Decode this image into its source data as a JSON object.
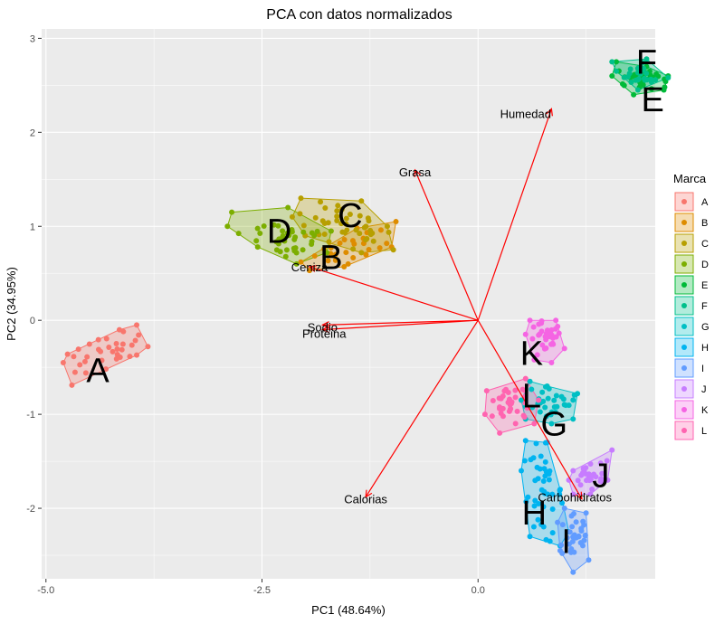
{
  "chart_data": {
    "type": "scatter",
    "title": "PCA con datos normalizados",
    "xlabel": "PC1 (48.64%)",
    "ylabel": "PC2 (34.95%)",
    "xlim": [
      -5.05,
      2.05
    ],
    "ylim": [
      -2.75,
      3.1
    ],
    "x_ticks": [
      -5.0,
      -2.5,
      0.0
    ],
    "x_tick_labels": [
      "-5.0",
      "-2.5",
      "0.0"
    ],
    "y_ticks": [
      -2,
      -1,
      0,
      1,
      2,
      3
    ],
    "y_tick_labels": [
      "-2",
      "-1",
      "0",
      "1",
      "2",
      "3"
    ],
    "grid": true,
    "legend": {
      "title": "Marca",
      "position": "right"
    },
    "groups": [
      {
        "name": "A",
        "color": "#F8766D",
        "label_pos": [
          -4.4,
          -0.53
        ],
        "hull": [
          [
            -4.75,
            -0.36
          ],
          [
            -4.15,
            -0.1
          ],
          [
            -3.95,
            -0.05
          ],
          [
            -3.82,
            -0.28
          ],
          [
            -3.95,
            -0.37
          ],
          [
            -4.7,
            -0.69
          ],
          [
            -4.8,
            -0.45
          ]
        ],
        "center": [
          -4.3,
          -0.35
        ],
        "spread": [
          0.3,
          0.15
        ],
        "n": 28
      },
      {
        "name": "B",
        "color": "#DE8C00",
        "label_pos": [
          -1.7,
          0.67
        ],
        "hull": [
          [
            -2.05,
            0.62
          ],
          [
            -1.4,
            0.98
          ],
          [
            -0.95,
            1.05
          ],
          [
            -1.0,
            0.78
          ],
          [
            -1.55,
            0.57
          ],
          [
            -1.95,
            0.53
          ]
        ],
        "center": [
          -1.5,
          0.78
        ],
        "spread": [
          0.25,
          0.12
        ],
        "n": 22
      },
      {
        "name": "C",
        "color": "#B79F00",
        "label_pos": [
          -1.48,
          1.12
        ],
        "hull": [
          [
            -2.05,
            1.3
          ],
          [
            -1.35,
            1.27
          ],
          [
            -1.05,
            1.0
          ],
          [
            -0.98,
            0.75
          ],
          [
            -1.35,
            0.72
          ],
          [
            -2.0,
            0.9
          ],
          [
            -2.15,
            1.1
          ]
        ],
        "center": [
          -1.6,
          0.97
        ],
        "spread": [
          0.3,
          0.15
        ],
        "n": 38
      },
      {
        "name": "D",
        "color": "#7CAE00",
        "label_pos": [
          -2.3,
          0.95
        ],
        "hull": [
          [
            -2.85,
            1.15
          ],
          [
            -2.2,
            1.2
          ],
          [
            -1.7,
            0.95
          ],
          [
            -1.75,
            0.72
          ],
          [
            -2.1,
            0.6
          ],
          [
            -2.55,
            0.78
          ],
          [
            -2.9,
            1.0
          ]
        ],
        "center": [
          -2.25,
          0.88
        ],
        "spread": [
          0.3,
          0.12
        ],
        "n": 35
      },
      {
        "name": "E",
        "color": "#00BA38",
        "label_pos": [
          2.02,
          2.35
        ],
        "hull": [
          [
            1.6,
            2.75
          ],
          [
            1.95,
            2.7
          ],
          [
            2.2,
            2.6
          ],
          [
            2.15,
            2.45
          ],
          [
            1.8,
            2.4
          ],
          [
            1.55,
            2.6
          ]
        ],
        "center": [
          1.9,
          2.57
        ],
        "spread": [
          0.15,
          0.07
        ],
        "n": 35
      },
      {
        "name": "F",
        "color": "#00C08B",
        "label_pos": [
          1.95,
          2.75
        ],
        "hull": [
          [
            1.55,
            2.75
          ],
          [
            1.95,
            2.78
          ],
          [
            2.2,
            2.58
          ],
          [
            1.85,
            2.45
          ],
          [
            1.6,
            2.65
          ]
        ],
        "center": [
          1.88,
          2.62
        ],
        "spread": [
          0.15,
          0.07
        ],
        "n": 25
      },
      {
        "name": "G",
        "color": "#00BFC4",
        "label_pos": [
          0.88,
          -1.1
        ],
        "hull": [
          [
            0.6,
            -0.65
          ],
          [
            0.8,
            -0.7
          ],
          [
            1.15,
            -0.78
          ],
          [
            1.1,
            -1.05
          ],
          [
            0.85,
            -1.1
          ],
          [
            0.55,
            -1.05
          ],
          [
            0.5,
            -0.85
          ]
        ],
        "center": [
          0.85,
          -0.88
        ],
        "spread": [
          0.15,
          0.1
        ],
        "n": 28
      },
      {
        "name": "H",
        "color": "#00B4F0",
        "label_pos": [
          0.65,
          -2.05
        ],
        "hull": [
          [
            0.55,
            -1.28
          ],
          [
            0.8,
            -1.3
          ],
          [
            0.95,
            -1.8
          ],
          [
            1.05,
            -2.25
          ],
          [
            0.95,
            -2.4
          ],
          [
            0.6,
            -2.3
          ],
          [
            0.5,
            -1.6
          ]
        ],
        "center": [
          0.75,
          -1.85
        ],
        "spread": [
          0.12,
          0.28
        ],
        "n": 40
      },
      {
        "name": "I",
        "color": "#619CFF",
        "label_pos": [
          1.02,
          -2.35
        ],
        "hull": [
          [
            1.0,
            -2.0
          ],
          [
            1.25,
            -2.05
          ],
          [
            1.28,
            -2.55
          ],
          [
            1.1,
            -2.68
          ],
          [
            0.95,
            -2.45
          ],
          [
            0.92,
            -2.15
          ]
        ],
        "center": [
          1.12,
          -2.3
        ],
        "spread": [
          0.1,
          0.15
        ],
        "n": 30
      },
      {
        "name": "J",
        "color": "#C77CFF",
        "label_pos": [
          1.42,
          -1.65
        ],
        "hull": [
          [
            1.1,
            -1.6
          ],
          [
            1.55,
            -1.38
          ],
          [
            1.5,
            -1.7
          ],
          [
            1.3,
            -1.85
          ],
          [
            1.1,
            -1.85
          ],
          [
            1.05,
            -1.7
          ]
        ],
        "center": [
          1.3,
          -1.65
        ],
        "spread": [
          0.12,
          0.1
        ],
        "n": 25
      },
      {
        "name": "K",
        "color": "#F564E3",
        "label_pos": [
          0.62,
          -0.35
        ],
        "hull": [
          [
            0.6,
            -0.0
          ],
          [
            0.9,
            0.0
          ],
          [
            1.0,
            -0.3
          ],
          [
            0.85,
            -0.45
          ],
          [
            0.65,
            -0.42
          ],
          [
            0.55,
            -0.15
          ]
        ],
        "center": [
          0.78,
          -0.22
        ],
        "spread": [
          0.1,
          0.1
        ],
        "n": 28
      },
      {
        "name": "L",
        "color": "#FF64B0",
        "label_pos": [
          0.62,
          -0.8
        ],
        "hull": [
          [
            0.1,
            -0.75
          ],
          [
            0.55,
            -0.62
          ],
          [
            0.7,
            -0.85
          ],
          [
            0.65,
            -1.1
          ],
          [
            0.25,
            -1.2
          ],
          [
            0.08,
            -1.0
          ]
        ],
        "center": [
          0.4,
          -0.9
        ],
        "spread": [
          0.15,
          0.12
        ],
        "n": 32
      }
    ],
    "loadings": [
      {
        "name": "Humedad",
        "x": 0.85,
        "y": 2.25,
        "label_x": 0.55,
        "label_y": 2.2
      },
      {
        "name": "Grasa",
        "x": -0.73,
        "y": 1.6,
        "label_x": -0.73,
        "label_y": 1.58
      },
      {
        "name": "Ceniza",
        "x": -1.95,
        "y": 0.57,
        "label_x": -1.95,
        "label_y": 0.57
      },
      {
        "name": "Sodio",
        "x": -1.8,
        "y": -0.05,
        "label_x": -1.8,
        "label_y": -0.07
      },
      {
        "name": "Proteina",
        "x": -1.8,
        "y": -0.1,
        "label_x": -1.78,
        "label_y": -0.14
      },
      {
        "name": "Calorias",
        "x": -1.3,
        "y": -1.88,
        "label_x": -1.3,
        "label_y": -1.9
      },
      {
        "name": "Carbohidratos",
        "x": 1.2,
        "y": -1.9,
        "label_x": 1.12,
        "label_y": -1.88
      }
    ]
  }
}
